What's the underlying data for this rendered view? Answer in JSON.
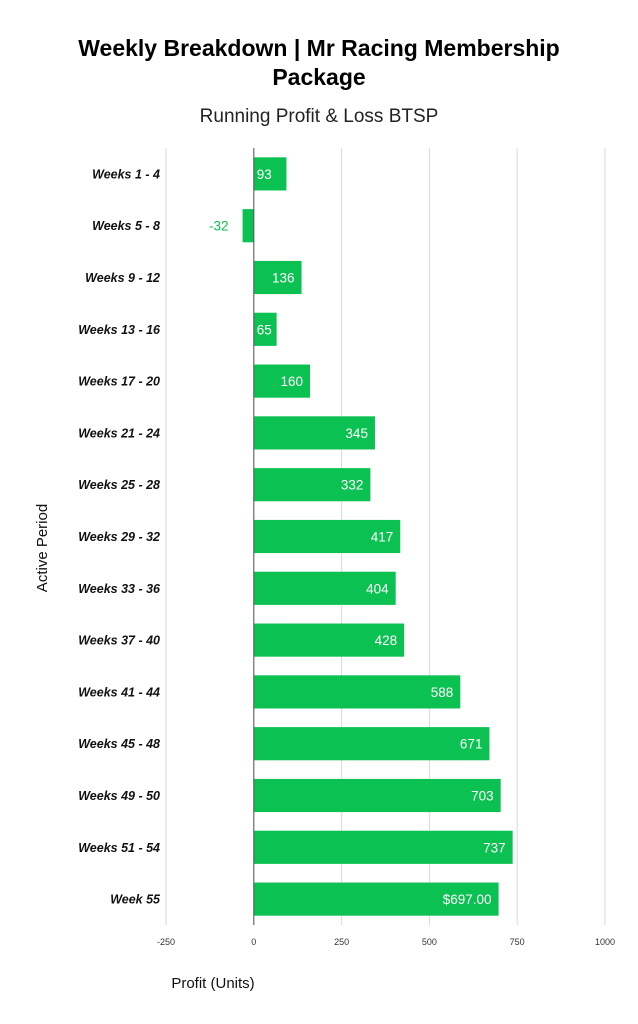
{
  "chart_data": {
    "type": "bar",
    "orientation": "horizontal",
    "title_line1": "Weekly Breakdown | Mr Racing Membership",
    "title_line2": "Package",
    "subtitle": "Running Profit & Loss BTSP",
    "xlabel": "Profit (Units)",
    "ylabel": "Active Period",
    "xlim": [
      -250,
      1000
    ],
    "xticks": [
      -250,
      0,
      250,
      500,
      750,
      1000
    ],
    "grid": true,
    "bar_color": "#0ac151",
    "categories": [
      "Weeks 1 - 4",
      "Weeks 5 - 8",
      "Weeks 9 - 12",
      "Weeks 13 - 16",
      "Weeks 17 - 20",
      "Weeks 21 - 24",
      "Weeks 25 - 28",
      "Weeks 29 - 32",
      "Weeks 33 - 36",
      "Weeks 37 - 40",
      "Weeks 41 - 44",
      "Weeks 45 - 48",
      "Weeks 49 - 50",
      "Weeks 51 - 54",
      "Week 55"
    ],
    "values": [
      93,
      -32,
      136,
      65,
      160,
      345,
      332,
      417,
      404,
      428,
      588,
      671,
      703,
      737,
      697
    ],
    "data_labels": [
      "93",
      "-32",
      "136",
      "65",
      "160",
      "345",
      "332",
      "417",
      "404",
      "428",
      "588",
      "671",
      "703",
      "737",
      "$697.00"
    ]
  }
}
